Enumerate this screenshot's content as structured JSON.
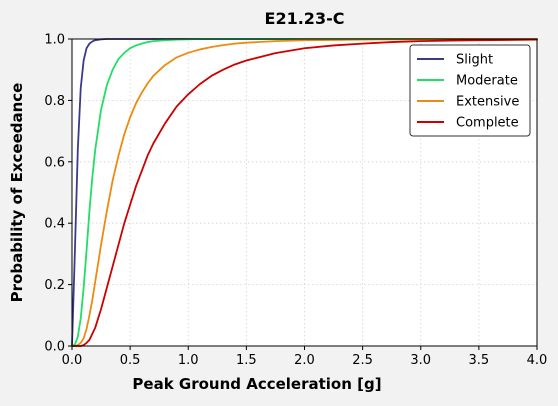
{
  "chart_data": {
    "type": "line",
    "title": "E21.23-C",
    "xlabel": "Peak Ground Acceleration [g]",
    "ylabel": "Probability of Exceedance",
    "xlim": [
      0,
      4
    ],
    "ylim": [
      0,
      1
    ],
    "xticks": [
      "0.0",
      "0.5",
      "1.0",
      "1.5",
      "2.0",
      "2.5",
      "3.0",
      "3.5",
      "4.0"
    ],
    "yticks": [
      "0.0",
      "0.2",
      "0.4",
      "0.6",
      "0.8",
      "1.0"
    ],
    "grid": true,
    "legend_position": "top-right",
    "x": [
      0.0,
      0.025,
      0.05,
      0.075,
      0.1,
      0.125,
      0.15,
      0.175,
      0.2,
      0.25,
      0.3,
      0.35,
      0.4,
      0.45,
      0.5,
      0.55,
      0.6,
      0.65,
      0.7,
      0.8,
      0.9,
      1.0,
      1.1,
      1.2,
      1.3,
      1.4,
      1.5,
      1.75,
      2.0,
      2.25,
      2.5,
      2.75,
      3.0,
      3.25,
      3.5,
      3.75,
      4.0
    ],
    "series": [
      {
        "name": "Slight",
        "color": "#3a3a8c",
        "values": [
          0.0,
          0.31,
          0.64,
          0.84,
          0.93,
          0.97,
          0.985,
          0.992,
          0.996,
          0.999,
          1.0,
          1.0,
          1.0,
          1.0,
          1.0,
          1.0,
          1.0,
          1.0,
          1.0,
          1.0,
          1.0,
          1.0,
          1.0,
          1.0,
          1.0,
          1.0,
          1.0,
          1.0,
          1.0,
          1.0,
          1.0,
          1.0,
          1.0,
          1.0,
          1.0,
          1.0,
          1.0
        ]
      },
      {
        "name": "Moderate",
        "color": "#22dd66",
        "values": [
          0.0,
          0.005,
          0.03,
          0.09,
          0.19,
          0.31,
          0.44,
          0.55,
          0.64,
          0.77,
          0.85,
          0.9,
          0.935,
          0.955,
          0.97,
          0.979,
          0.985,
          0.99,
          0.993,
          0.996,
          0.998,
          0.999,
          1.0,
          1.0,
          1.0,
          1.0,
          1.0,
          1.0,
          1.0,
          1.0,
          1.0,
          1.0,
          1.0,
          1.0,
          1.0,
          1.0,
          1.0
        ]
      },
      {
        "name": "Extensive",
        "color": "#ee8a10",
        "values": [
          0.0,
          0.0,
          0.003,
          0.01,
          0.025,
          0.055,
          0.1,
          0.15,
          0.21,
          0.33,
          0.44,
          0.54,
          0.62,
          0.69,
          0.745,
          0.79,
          0.825,
          0.855,
          0.88,
          0.915,
          0.94,
          0.955,
          0.966,
          0.974,
          0.98,
          0.985,
          0.988,
          0.993,
          0.996,
          0.997,
          0.998,
          0.999,
          0.999,
          1.0,
          1.0,
          1.0,
          1.0
        ]
      },
      {
        "name": "Complete",
        "color": "#cc0000",
        "values": [
          0.0,
          0.0,
          0.0,
          0.0,
          0.003,
          0.01,
          0.02,
          0.04,
          0.06,
          0.12,
          0.19,
          0.26,
          0.33,
          0.4,
          0.46,
          0.52,
          0.57,
          0.62,
          0.66,
          0.725,
          0.78,
          0.82,
          0.853,
          0.88,
          0.9,
          0.917,
          0.93,
          0.954,
          0.97,
          0.979,
          0.985,
          0.99,
          0.993,
          0.995,
          0.996,
          0.997,
          0.998
        ]
      }
    ]
  }
}
